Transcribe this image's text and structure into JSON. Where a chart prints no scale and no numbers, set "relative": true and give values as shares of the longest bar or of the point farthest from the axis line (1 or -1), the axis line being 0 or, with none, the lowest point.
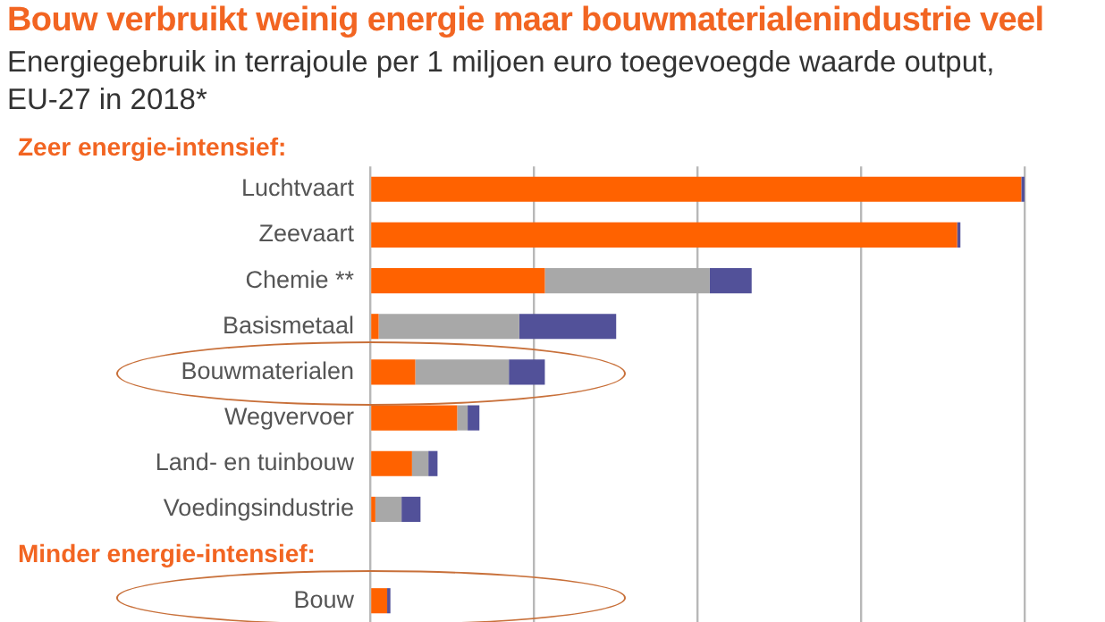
{
  "chart_data": {
    "type": "bar",
    "orientation": "horizontal",
    "stacked": true,
    "relative": true,
    "title": "Bouw verbruikt weinig energie maar bouwmaterialenindustrie veel",
    "subtitle": "Energiegebruik in terrajoule per 1 miljoen euro toegevoegde waarde output, EU-27 in 2018*",
    "annotations": [
      "Zeer energie-intensief:",
      "Minder energie-intensief:"
    ],
    "categories": [
      "Luchtvaart",
      "Zeevaart",
      "Chemie **",
      "Basismetaal",
      "Bouwmaterialen",
      "Wegvervoer",
      "Land- en tuinbouw",
      "Voedingsindustrie",
      null,
      "Bouw"
    ],
    "series": [
      {
        "color": "#ff6200",
        "values": [
          0.995,
          0.897,
          0.267,
          0.013,
          0.069,
          0.133,
          0.064,
          0.008,
          null,
          0.026
        ]
      },
      {
        "color": "#a8a8a8",
        "values": [
          0,
          0,
          0.252,
          0.215,
          0.143,
          0.016,
          0.025,
          0.04,
          null,
          0
        ]
      },
      {
        "color": "#525199",
        "values": [
          0.005,
          0.005,
          0.064,
          0.148,
          0.055,
          0.018,
          0.014,
          0.029,
          null,
          0.005
        ]
      }
    ],
    "grid": "x",
    "legend": false,
    "tick_labels": "y"
  }
}
